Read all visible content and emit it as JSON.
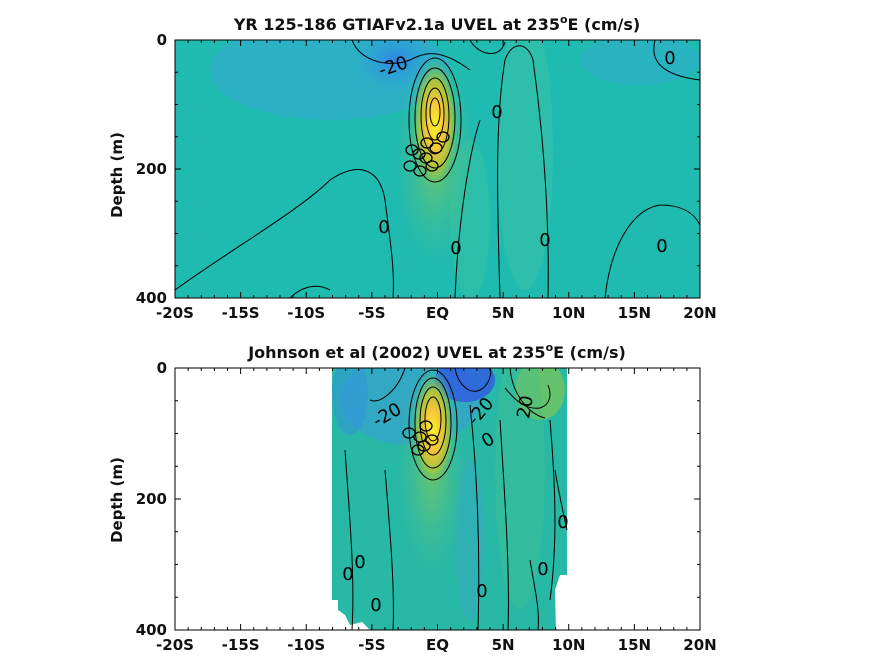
{
  "chart_data": [
    {
      "type": "heatmap",
      "title_prefix": "YR 125-186 GTIAFv2.1a UVEL at 235",
      "title_sup": "o",
      "title_suffix": "E (cm/s)",
      "xlabel": "",
      "ylabel": "Depth (m)",
      "x_ticks": [
        "-20S",
        "-15S",
        "-10S",
        "-5S",
        "EQ",
        "5N",
        "10N",
        "15N",
        "20N"
      ],
      "y_ticks": [
        "0",
        "200",
        "400"
      ],
      "xlim": [
        -20,
        20
      ],
      "ylim": [
        0,
        400
      ],
      "y_reversed": true,
      "colormap": "parula",
      "data_extent": [
        -20,
        20
      ],
      "contour_labels": [
        "-20",
        "0",
        "0",
        "0",
        "0",
        "0",
        "0"
      ]
    },
    {
      "type": "heatmap",
      "title_prefix": "Johnson et al (2002) UVEL at 235",
      "title_sup": "o",
      "title_suffix": "E (cm/s)",
      "xlabel": "",
      "ylabel": "Depth (m)",
      "x_ticks": [
        "-20S",
        "-15S",
        "-10S",
        "-5S",
        "EQ",
        "5N",
        "10N",
        "15N",
        "20N"
      ],
      "y_ticks": [
        "0",
        "200",
        "400"
      ],
      "xlim": [
        -20,
        20
      ],
      "ylim": [
        0,
        400
      ],
      "y_reversed": true,
      "colormap": "parula",
      "data_extent": [
        -8,
        10
      ],
      "contour_labels": [
        "-20",
        "-20",
        "20",
        "0",
        "0",
        "0",
        "0",
        "0",
        "0",
        "0"
      ]
    }
  ],
  "colors": {
    "background": "#1fbab0",
    "westward_strong": "#2f6fe0",
    "westward_mid": "#3a9ad9",
    "eastward_mid": "#a8c43c",
    "eastward_strong": "#f5c53b",
    "core": "#f9f423",
    "contour": "#000000"
  }
}
